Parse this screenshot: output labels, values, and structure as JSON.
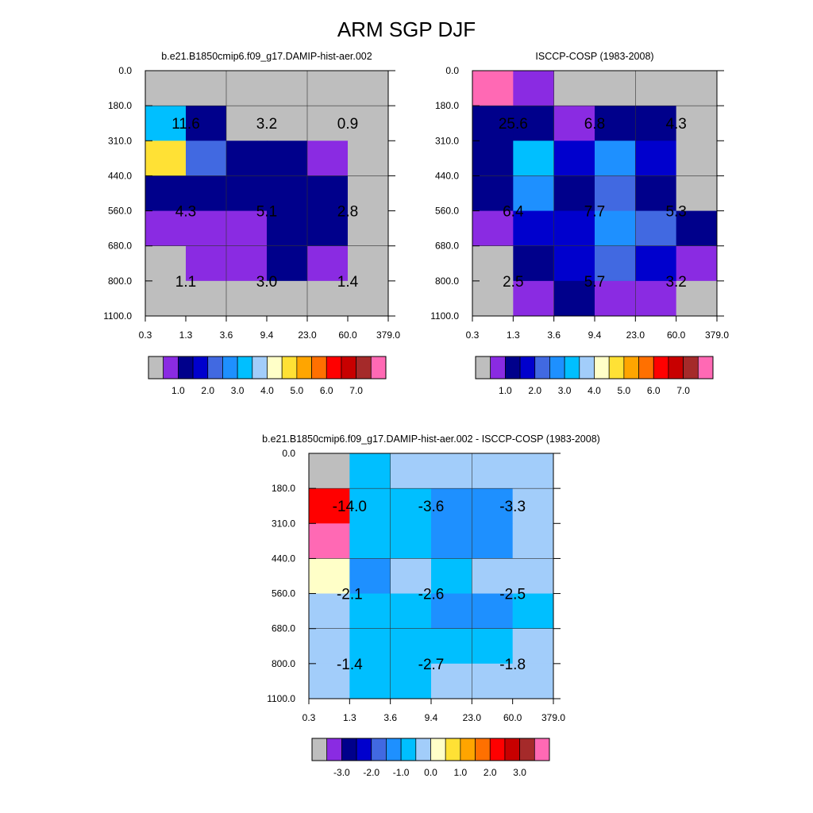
{
  "title": "ARM SGP DJF",
  "x_ticks": [
    "0.3",
    "1.3",
    "3.6",
    "9.4",
    "23.0",
    "60.0",
    "379.0"
  ],
  "y_ticks": [
    "0.0",
    "180.0",
    "310.0",
    "440.0",
    "560.0",
    "680.0",
    "800.0",
    "1100.0"
  ],
  "palette": {
    "gray": "#bebebe",
    "violet": "#8a2be2",
    "navy": "#00008b",
    "darkblue": "#0000cd",
    "royal": "#4169e1",
    "dodger": "#1e90ff",
    "deepsky": "#00bfff",
    "pale": "#a2cdfa",
    "cream": "#ffffc8",
    "gold": "#ffe135",
    "orange1": "#ffa500",
    "orange2": "#ff7000",
    "red": "#ff0000",
    "darkred": "#c80000",
    "brown": "#a52a2a",
    "pink": "#ff69b4"
  },
  "chart_data": [
    {
      "type": "heatmap",
      "id": "model",
      "title": "b.e21.B1850cmip6.f09_g17.DAMIP-hist-aer.002",
      "x_bins": [
        "0.3",
        "1.3",
        "3.6",
        "9.4",
        "23.0",
        "60.0",
        "379.0"
      ],
      "y_bins": [
        "0.0",
        "180.0",
        "310.0",
        "440.0",
        "560.0",
        "680.0",
        "800.0",
        "1100.0"
      ],
      "cells": [
        [
          "gray",
          "gray",
          "gray",
          "gray",
          "gray",
          "gray"
        ],
        [
          "deepsky",
          "navy",
          "gray",
          "gray",
          "gray",
          "gray"
        ],
        [
          "gold",
          "royal",
          "navy",
          "navy",
          "violet",
          "gray"
        ],
        [
          "navy",
          "navy",
          "navy",
          "navy",
          "navy",
          "gray"
        ],
        [
          "violet",
          "violet",
          "violet",
          "navy",
          "navy",
          "gray"
        ],
        [
          "gray",
          "violet",
          "violet",
          "navy",
          "violet",
          "gray"
        ],
        [
          "gray",
          "gray",
          "gray",
          "gray",
          "gray",
          "gray"
        ]
      ],
      "annotations": [
        {
          "col": 0,
          "row": 0,
          "text": "11.6"
        },
        {
          "col": 1,
          "row": 0,
          "text": "3.2"
        },
        {
          "col": 2,
          "row": 0,
          "text": "0.9"
        },
        {
          "col": 0,
          "row": 1,
          "text": "4.3"
        },
        {
          "col": 1,
          "row": 1,
          "text": "5.1"
        },
        {
          "col": 2,
          "row": 1,
          "text": "2.8"
        },
        {
          "col": 0,
          "row": 2,
          "text": "1.1"
        },
        {
          "col": 1,
          "row": 2,
          "text": "3.0"
        },
        {
          "col": 2,
          "row": 2,
          "text": "1.4"
        }
      ],
      "colorbar": {
        "colors": [
          "gray",
          "violet",
          "navy",
          "darkblue",
          "royal",
          "dodger",
          "deepsky",
          "pale",
          "cream",
          "gold",
          "orange1",
          "orange2",
          "red",
          "darkred",
          "brown",
          "pink"
        ],
        "labels": [
          "1.0",
          "2.0",
          "3.0",
          "4.0",
          "5.0",
          "6.0",
          "7.0"
        ],
        "label_boundaries": [
          2,
          4,
          6,
          8,
          10,
          12,
          14
        ]
      }
    },
    {
      "type": "heatmap",
      "id": "obs",
      "title": "ISCCP-COSP (1983-2008)",
      "x_bins": [
        "0.3",
        "1.3",
        "3.6",
        "9.4",
        "23.0",
        "60.0",
        "379.0"
      ],
      "y_bins": [
        "0.0",
        "180.0",
        "310.0",
        "440.0",
        "560.0",
        "680.0",
        "800.0",
        "1100.0"
      ],
      "cells": [
        [
          "pink",
          "violet",
          "gray",
          "gray",
          "gray",
          "gray"
        ],
        [
          "navy",
          "navy",
          "violet",
          "navy",
          "navy",
          "gray"
        ],
        [
          "navy",
          "deepsky",
          "darkblue",
          "dodger",
          "darkblue",
          "gray"
        ],
        [
          "navy",
          "dodger",
          "navy",
          "royal",
          "navy",
          "gray"
        ],
        [
          "violet",
          "darkblue",
          "darkblue",
          "dodger",
          "royal",
          "navy"
        ],
        [
          "gray",
          "navy",
          "darkblue",
          "royal",
          "darkblue",
          "violet"
        ],
        [
          "gray",
          "violet",
          "navy",
          "violet",
          "violet",
          "gray"
        ]
      ],
      "annotations": [
        {
          "col": 0,
          "row": 0,
          "text": "25.6"
        },
        {
          "col": 1,
          "row": 0,
          "text": "6.8"
        },
        {
          "col": 2,
          "row": 0,
          "text": "4.3"
        },
        {
          "col": 0,
          "row": 1,
          "text": "6.4"
        },
        {
          "col": 1,
          "row": 1,
          "text": "7.7"
        },
        {
          "col": 2,
          "row": 1,
          "text": "5.3"
        },
        {
          "col": 0,
          "row": 2,
          "text": "2.5"
        },
        {
          "col": 1,
          "row": 2,
          "text": "5.7"
        },
        {
          "col": 2,
          "row": 2,
          "text": "3.2"
        }
      ],
      "colorbar": {
        "colors": [
          "gray",
          "violet",
          "navy",
          "darkblue",
          "royal",
          "dodger",
          "deepsky",
          "pale",
          "cream",
          "gold",
          "orange1",
          "orange2",
          "red",
          "darkred",
          "brown",
          "pink"
        ],
        "labels": [
          "1.0",
          "2.0",
          "3.0",
          "4.0",
          "5.0",
          "6.0",
          "7.0"
        ],
        "label_boundaries": [
          2,
          4,
          6,
          8,
          10,
          12,
          14
        ]
      }
    },
    {
      "type": "heatmap",
      "id": "diff",
      "title": "b.e21.B1850cmip6.f09_g17.DAMIP-hist-aer.002 - ISCCP-COSP (1983-2008)",
      "x_bins": [
        "0.3",
        "1.3",
        "3.6",
        "9.4",
        "23.0",
        "60.0",
        "379.0"
      ],
      "y_bins": [
        "0.0",
        "180.0",
        "310.0",
        "440.0",
        "560.0",
        "680.0",
        "800.0",
        "1100.0"
      ],
      "cells": [
        [
          "gray",
          "deepsky",
          "pale",
          "pale",
          "pale",
          "pale"
        ],
        [
          "red",
          "deepsky",
          "deepsky",
          "dodger",
          "dodger",
          "pale"
        ],
        [
          "pink",
          "deepsky",
          "deepsky",
          "dodger",
          "dodger",
          "pale"
        ],
        [
          "cream",
          "dodger",
          "pale",
          "deepsky",
          "pale",
          "pale"
        ],
        [
          "pale",
          "deepsky",
          "deepsky",
          "dodger",
          "dodger",
          "deepsky"
        ],
        [
          "pale",
          "deepsky",
          "deepsky",
          "deepsky",
          "deepsky",
          "pale"
        ],
        [
          "pale",
          "deepsky",
          "deepsky",
          "pale",
          "pale",
          "pale"
        ]
      ],
      "annotations": [
        {
          "col": 0,
          "row": 0,
          "text": "-14.0"
        },
        {
          "col": 1,
          "row": 0,
          "text": "-3.6"
        },
        {
          "col": 2,
          "row": 0,
          "text": "-3.3"
        },
        {
          "col": 0,
          "row": 1,
          "text": "-2.1"
        },
        {
          "col": 1,
          "row": 1,
          "text": "-2.6"
        },
        {
          "col": 2,
          "row": 1,
          "text": "-2.5"
        },
        {
          "col": 0,
          "row": 2,
          "text": "-1.4"
        },
        {
          "col": 1,
          "row": 2,
          "text": "-2.7"
        },
        {
          "col": 2,
          "row": 2,
          "text": "-1.8"
        }
      ],
      "colorbar": {
        "colors": [
          "gray",
          "violet",
          "navy",
          "darkblue",
          "royal",
          "dodger",
          "deepsky",
          "pale",
          "cream",
          "gold",
          "orange1",
          "orange2",
          "red",
          "darkred",
          "brown",
          "pink"
        ],
        "labels": [
          "-3.0",
          "-2.0",
          "-1.0",
          "0.0",
          "1.0",
          "2.0",
          "3.0"
        ],
        "label_boundaries": [
          2,
          4,
          6,
          8,
          10,
          12,
          14
        ]
      }
    }
  ]
}
